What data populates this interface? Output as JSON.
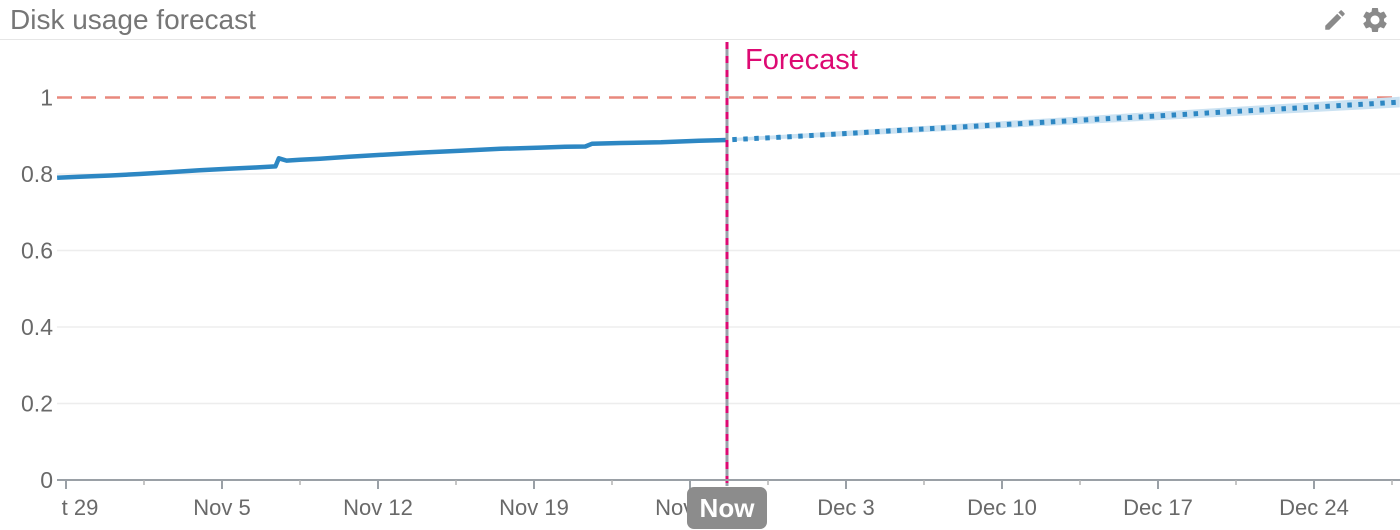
{
  "header": {
    "title": "Disk usage forecast",
    "edit_action": "edit",
    "settings_action": "settings"
  },
  "colors": {
    "title": "#767676",
    "icon": "#8a8a8a",
    "history_line": "#2d87c3",
    "forecast_line": "#2d87c3",
    "confidence_band": "#cbe2f2",
    "threshold_line": "#e8887d",
    "now_line_base": "#9aa2ab",
    "now_line_accent": "#dd0a73",
    "forecast_label": "#dd0a73",
    "now_badge_bg": "#8c8c8c",
    "now_badge_text": "#ffffff",
    "axis_line": "#9aa0a6",
    "tick_label": "#696969",
    "grid_line": "#ededed"
  },
  "chart_data": {
    "type": "line",
    "title": "Disk usage forecast",
    "xlabel": "",
    "ylabel": "",
    "grid": "horizontal",
    "legend": "none",
    "x_unit": "days since first visible tick (Oct 29)",
    "x_range": [
      -0.5,
      60
    ],
    "y_range": [
      0,
      1.13
    ],
    "y_axis": {
      "tick_values": [
        0,
        0.2,
        0.4,
        0.6,
        0.8,
        1
      ],
      "labels": [
        "0",
        "0.2",
        "0.4",
        "0.6",
        "0.8",
        "1"
      ]
    },
    "x_axis": {
      "tick_day_values": [
        0,
        7,
        14,
        21,
        28,
        35,
        42,
        49,
        56
      ],
      "labels": [
        "t 29",
        "Nov 5",
        "Nov 12",
        "Nov 19",
        "Nov 26",
        "Dec 3",
        "Dec 10",
        "Dec 17",
        "Dec 24"
      ],
      "minor_tick_day_values": [
        3.5,
        10.5,
        17.5,
        24.5,
        31.5,
        38.5,
        45.5,
        52.5,
        59.5
      ]
    },
    "threshold": {
      "name": "capacity-limit",
      "value": 1,
      "style": "dashed"
    },
    "now_marker": {
      "day": 29.66,
      "badge_label": "Now"
    },
    "forecast_label": "Forecast",
    "series": [
      {
        "name": "disk-usage-history",
        "style": "solid",
        "points": [
          [
            -0.4,
            0.79
          ],
          [
            0.6,
            0.793
          ],
          [
            2.0,
            0.796
          ],
          [
            3.3,
            0.8
          ],
          [
            4.7,
            0.805
          ],
          [
            6.0,
            0.81
          ],
          [
            7.4,
            0.814
          ],
          [
            8.5,
            0.817
          ],
          [
            9.4,
            0.82
          ],
          [
            9.55,
            0.841
          ],
          [
            9.9,
            0.835
          ],
          [
            10.5,
            0.837
          ],
          [
            11.4,
            0.84
          ],
          [
            12.7,
            0.845
          ],
          [
            14.1,
            0.85
          ],
          [
            15.9,
            0.856
          ],
          [
            17.7,
            0.861
          ],
          [
            19.5,
            0.866
          ],
          [
            21.3,
            0.869
          ],
          [
            22.4,
            0.871
          ],
          [
            23.3,
            0.872
          ],
          [
            23.6,
            0.879
          ],
          [
            24.9,
            0.881
          ],
          [
            26.7,
            0.883
          ],
          [
            28.4,
            0.887
          ],
          [
            29.66,
            0.889
          ]
        ]
      },
      {
        "name": "disk-usage-forecast",
        "style": "dotted",
        "points": [
          [
            29.9,
            0.89
          ],
          [
            32,
            0.896
          ],
          [
            35,
            0.906
          ],
          [
            38,
            0.916
          ],
          [
            42,
            0.929
          ],
          [
            45,
            0.939
          ],
          [
            49,
            0.952
          ],
          [
            52,
            0.962
          ],
          [
            56,
            0.975
          ],
          [
            59.85,
            0.988
          ]
        ]
      },
      {
        "name": "forecast-confidence-band",
        "style": "band",
        "upper": [
          [
            29.9,
            0.894
          ],
          [
            35,
            0.913
          ],
          [
            42,
            0.938
          ],
          [
            49,
            0.963
          ],
          [
            56,
            0.988
          ],
          [
            59.85,
            1.002
          ]
        ],
        "lower": [
          [
            29.9,
            0.886
          ],
          [
            35,
            0.899
          ],
          [
            42,
            0.92
          ],
          [
            49,
            0.941
          ],
          [
            56,
            0.962
          ],
          [
            59.85,
            0.974
          ]
        ]
      }
    ]
  }
}
